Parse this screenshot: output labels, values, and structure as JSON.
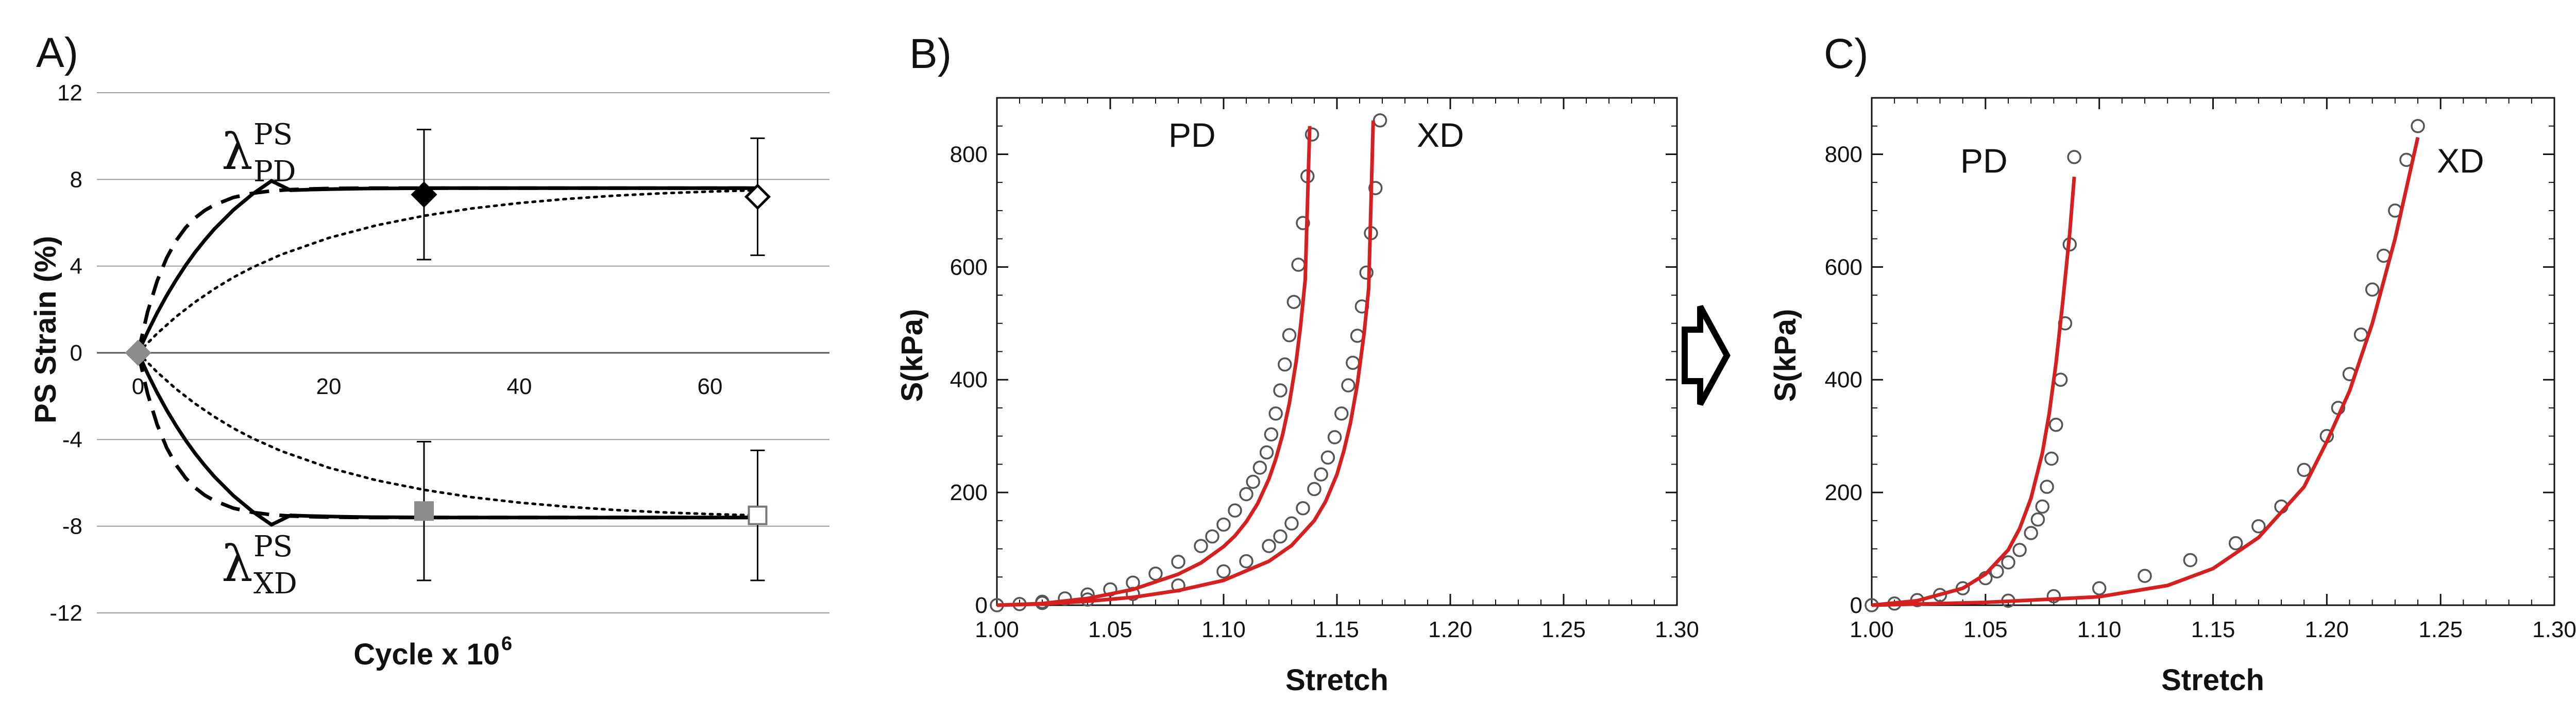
{
  "chart_data": [
    {
      "type": "line",
      "panel_label": "A)",
      "xlabel": "Cycle x 10",
      "xlabel_exponent": "6",
      "ylabel": "PS Strain (%)",
      "xlim": [
        0,
        72
      ],
      "ylim": [
        -12,
        12
      ],
      "x_ticks": [
        "0",
        "20",
        "40",
        "60"
      ],
      "y_ticks": [
        "12",
        "8",
        "4",
        "0",
        "-4",
        "-8",
        "-12"
      ],
      "grid": "horizontal",
      "annotations": [
        {
          "symbol": "λ",
          "superscript": "PS",
          "subscript": "PD"
        },
        {
          "symbol": "λ",
          "superscript": "PS",
          "subscript": "XD"
        }
      ],
      "series": [
        {
          "style": "dashed",
          "x": [
            0,
            1,
            2,
            3,
            4,
            5,
            6,
            7,
            8,
            10,
            12,
            14,
            16,
            18,
            20,
            24,
            28,
            32,
            36,
            40,
            45,
            50,
            55,
            60,
            65
          ],
          "y": [
            0.0,
            1.89,
            3.31,
            4.38,
            5.18,
            5.78,
            6.23,
            6.57,
            6.82,
            7.17,
            7.36,
            7.47,
            7.53,
            7.56,
            7.58,
            7.6,
            7.6,
            7.6,
            7.6,
            7.6,
            7.6,
            7.6,
            7.6,
            7.6,
            7.6
          ]
        },
        {
          "style": "solid",
          "x": [
            0,
            1,
            2,
            3,
            4,
            5,
            6,
            7,
            8,
            10,
            12,
            14,
            16,
            18,
            20,
            24,
            28,
            32,
            36,
            40,
            45,
            50,
            55,
            60,
            65
          ],
          "y": [
            0.0,
            0.96,
            1.84,
            2.64,
            3.37,
            4.04,
            4.65,
            5.2,
            5.71,
            6.59,
            7.32,
            7.93,
            7.5,
            7.53,
            7.55,
            7.58,
            7.59,
            7.6,
            7.6,
            7.6,
            7.6,
            7.6,
            7.6,
            7.6,
            7.6
          ]
        },
        {
          "style": "dotted",
          "x": [
            0,
            2,
            4,
            6,
            8,
            10,
            12,
            15,
            20,
            25,
            30,
            35,
            40,
            45,
            50,
            55,
            60,
            65
          ],
          "y": [
            0.0,
            0.89,
            1.67,
            2.35,
            2.95,
            3.48,
            3.94,
            4.53,
            5.3,
            5.88,
            6.32,
            6.66,
            6.91,
            7.1,
            7.25,
            7.36,
            7.44,
            7.5
          ]
        },
        {
          "style": "dashed",
          "x": [
            0,
            1,
            2,
            3,
            4,
            5,
            6,
            7,
            8,
            10,
            12,
            14,
            16,
            18,
            20,
            24,
            28,
            32,
            36,
            40,
            45,
            50,
            55,
            60,
            65
          ],
          "y": [
            0.0,
            -1.89,
            -3.31,
            -4.38,
            -5.18,
            -5.78,
            -6.23,
            -6.57,
            -6.82,
            -7.17,
            -7.36,
            -7.47,
            -7.53,
            -7.56,
            -7.58,
            -7.6,
            -7.6,
            -7.6,
            -7.6,
            -7.6,
            -7.6,
            -7.6,
            -7.6,
            -7.6,
            -7.6
          ]
        },
        {
          "style": "solid",
          "x": [
            0,
            1,
            2,
            3,
            4,
            5,
            6,
            7,
            8,
            10,
            12,
            14,
            16,
            18,
            20,
            24,
            28,
            32,
            36,
            40,
            45,
            50,
            55,
            60,
            65
          ],
          "y": [
            0.0,
            -0.96,
            -1.84,
            -2.64,
            -3.37,
            -4.04,
            -4.65,
            -5.2,
            -5.71,
            -6.59,
            -7.32,
            -7.93,
            -7.5,
            -7.53,
            -7.55,
            -7.58,
            -7.59,
            -7.6,
            -7.6,
            -7.6,
            -7.6,
            -7.6,
            -7.6,
            -7.6,
            -7.6
          ]
        },
        {
          "style": "dotted",
          "x": [
            0,
            2,
            4,
            6,
            8,
            10,
            12,
            15,
            20,
            25,
            30,
            35,
            40,
            45,
            50,
            55,
            60,
            65
          ],
          "y": [
            0.0,
            -0.89,
            -1.67,
            -2.35,
            -2.95,
            -3.48,
            -3.94,
            -4.53,
            -5.3,
            -5.88,
            -6.32,
            -6.66,
            -6.91,
            -7.1,
            -7.25,
            -7.36,
            -7.44,
            -7.5
          ]
        }
      ],
      "markers": [
        {
          "x": 0,
          "y": 0,
          "shape": "diamond",
          "fill": "#8c8c8c",
          "yerr": 0
        },
        {
          "x": 30,
          "y": 7.3,
          "shape": "diamond",
          "fill": "#000000",
          "yerr": 3.0
        },
        {
          "x": 65,
          "y": 7.2,
          "shape": "diamond",
          "fill": "#ffffff",
          "yerr": 2.7
        },
        {
          "x": 30,
          "y": -7.3,
          "shape": "square",
          "fill": "#8c8c8c",
          "yerr": 3.2
        },
        {
          "x": 65,
          "y": -7.5,
          "shape": "square",
          "fill": "#ffffff",
          "yerr": 3.0
        }
      ]
    },
    {
      "type": "scatter",
      "panel_label": "B)",
      "xlabel": "Stretch",
      "ylabel": "S(kPa)",
      "xlim": [
        1.0,
        1.3
      ],
      "ylim": [
        0,
        900
      ],
      "x_ticks": [
        "1.00",
        "1.05",
        "1.10",
        "1.15",
        "1.20",
        "1.25",
        "1.30"
      ],
      "y_ticks": [
        "0",
        "200",
        "400",
        "600",
        "800"
      ],
      "series": [
        {
          "name": "PD",
          "x": [
            1.0,
            1.01,
            1.02,
            1.03,
            1.04,
            1.05,
            1.06,
            1.07,
            1.08,
            1.09,
            1.095,
            1.1,
            1.105,
            1.11,
            1.113,
            1.116,
            1.119,
            1.121,
            1.123,
            1.125,
            1.127,
            1.129,
            1.131,
            1.133,
            1.135,
            1.137,
            1.139
          ],
          "y": [
            0,
            2,
            6,
            12,
            19,
            28,
            40,
            56,
            77,
            105,
            122,
            143,
            168,
            197,
            219,
            244,
            271,
            303,
            340,
            381,
            427,
            479,
            538,
            604,
            678,
            761,
            835
          ]
        },
        {
          "name": "XD",
          "x": [
            1.02,
            1.04,
            1.06,
            1.08,
            1.1,
            1.11,
            1.12,
            1.125,
            1.13,
            1.135,
            1.14,
            1.143,
            1.146,
            1.149,
            1.152,
            1.155,
            1.157,
            1.159,
            1.161,
            1.163,
            1.165,
            1.167,
            1.169
          ],
          "y": [
            4,
            10,
            20,
            35,
            60,
            78,
            105,
            122,
            145,
            172,
            206,
            232,
            262,
            298,
            340,
            390,
            430,
            478,
            530,
            590,
            660,
            740,
            860
          ]
        }
      ],
      "fit_series": [
        {
          "x": [
            1.0,
            1.02,
            1.04,
            1.06,
            1.08,
            1.09,
            1.1,
            1.105,
            1.11,
            1.115,
            1.12,
            1.123,
            1.126,
            1.129,
            1.132,
            1.134,
            1.136,
            1.138
          ],
          "y": [
            0,
            3,
            12,
            28,
            55,
            75,
            104,
            123,
            148,
            180,
            224,
            259,
            302,
            358,
            432,
            497,
            577,
            850
          ]
        },
        {
          "x": [
            1.0,
            1.02,
            1.04,
            1.06,
            1.08,
            1.1,
            1.12,
            1.13,
            1.14,
            1.145,
            1.15,
            1.153,
            1.156,
            1.159,
            1.162,
            1.164,
            1.166
          ],
          "y": [
            0,
            2,
            7,
            14,
            26,
            44,
            78,
            106,
            150,
            184,
            232,
            273,
            324,
            392,
            483,
            562,
            860
          ]
        }
      ],
      "fit_color": "#d62020"
    },
    {
      "type": "scatter",
      "panel_label": "C)",
      "xlabel": "Stretch",
      "ylabel": "S(kPa)",
      "xlim": [
        1.0,
        1.3
      ],
      "ylim": [
        0,
        900
      ],
      "x_ticks": [
        "1.00",
        "1.05",
        "1.10",
        "1.15",
        "1.20",
        "1.25",
        "1.30"
      ],
      "y_ticks": [
        "0",
        "200",
        "400",
        "600",
        "800"
      ],
      "series": [
        {
          "name": "PD",
          "x": [
            1.0,
            1.01,
            1.02,
            1.03,
            1.04,
            1.05,
            1.055,
            1.06,
            1.065,
            1.07,
            1.073,
            1.075,
            1.077,
            1.079,
            1.081,
            1.083,
            1.085,
            1.087,
            1.089
          ],
          "y": [
            0,
            3,
            9,
            18,
            30,
            48,
            60,
            76,
            98,
            128,
            152,
            175,
            210,
            260,
            320,
            400,
            500,
            640,
            795
          ]
        },
        {
          "name": "XD",
          "x": [
            1.06,
            1.08,
            1.1,
            1.12,
            1.14,
            1.16,
            1.17,
            1.18,
            1.19,
            1.2,
            1.205,
            1.21,
            1.215,
            1.22,
            1.225,
            1.23,
            1.235,
            1.24
          ],
          "y": [
            8,
            16,
            30,
            52,
            80,
            110,
            140,
            175,
            240,
            300,
            350,
            410,
            480,
            560,
            620,
            700,
            790,
            850
          ]
        }
      ],
      "fit_series": [
        {
          "x": [
            1.0,
            1.02,
            1.04,
            1.05,
            1.06,
            1.065,
            1.07,
            1.075,
            1.078,
            1.081,
            1.084,
            1.087,
            1.089
          ],
          "y": [
            0,
            8,
            30,
            55,
            98,
            136,
            190,
            270,
            340,
            430,
            540,
            660,
            760
          ]
        },
        {
          "x": [
            1.0,
            1.05,
            1.1,
            1.13,
            1.15,
            1.17,
            1.19,
            1.2,
            1.21,
            1.22,
            1.23,
            1.24
          ],
          "y": [
            0,
            5,
            15,
            35,
            65,
            120,
            210,
            290,
            380,
            500,
            650,
            830
          ]
        }
      ],
      "fit_color": "#d62020"
    }
  ],
  "arrow_icon": "right-hollow-arrow-icon"
}
